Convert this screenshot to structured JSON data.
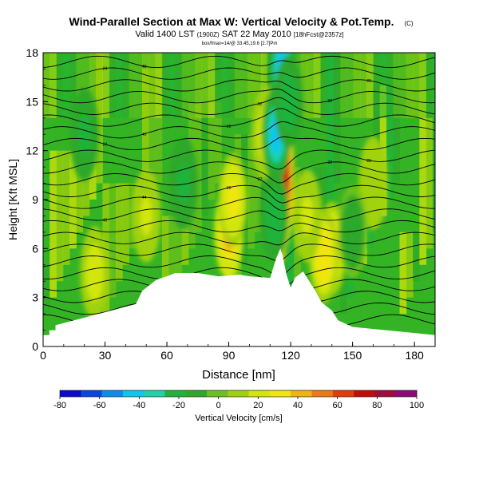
{
  "chart_data": {
    "type": "heatmap",
    "title": "Wind-Parallel Section at Max W: Vertical Velocity & Pot.Temp.",
    "title_mark": "(C)",
    "subtitle_main": "Valid 1400 LST",
    "subtitle_small1": "(1900Z)",
    "subtitle_mid": "SAT 22 May 2010",
    "subtitle_small2": "[18hFcst@2357z]",
    "subtitle2": "box/fmax=14/@ 33.45,19.6 [2.7]Pm",
    "xlabel": "Distance [nm]",
    "ylabel": "Height [Kft MSL]",
    "xlim": [
      0,
      190
    ],
    "ylim": [
      0,
      18
    ],
    "xticks": [
      0,
      30,
      60,
      90,
      120,
      150,
      180
    ],
    "yticks": [
      0,
      3,
      6,
      9,
      12,
      15,
      18
    ],
    "colorbar": {
      "label": "Vertical Velocity [cm/s]",
      "ticks": [
        -80,
        -60,
        -40,
        -20,
        0,
        20,
        40,
        60,
        80,
        100
      ],
      "range": [
        -80,
        100
      ],
      "colors": [
        "#0a0ad2",
        "#0a46e6",
        "#0a8cf0",
        "#0ac8f0",
        "#1ed2aa",
        "#1eb43c",
        "#2ea82a",
        "#6cc21a",
        "#a0d20a",
        "#d2e60a",
        "#f0e60a",
        "#f0b40a",
        "#f07814",
        "#e63c0a",
        "#c80a0a",
        "#a00a3c",
        "#8c0a78"
      ]
    },
    "terrain_profile": {
      "x": [
        0,
        3,
        3,
        6,
        6,
        45,
        48,
        52,
        55,
        60,
        64,
        70,
        75,
        85,
        95,
        100,
        110,
        113,
        115,
        116,
        118,
        120,
        122,
        126,
        128,
        132,
        135,
        140,
        143,
        150,
        190
      ],
      "height": [
        0.7,
        0.7,
        1.0,
        1.0,
        1.3,
        2.6,
        3.4,
        3.8,
        4.1,
        4.3,
        4.5,
        4.5,
        4.5,
        4.3,
        4.4,
        4.3,
        4.2,
        5.4,
        6.0,
        5.6,
        4.4,
        3.6,
        4.2,
        4.6,
        4.2,
        3.4,
        2.7,
        2.2,
        1.6,
        1.2,
        0.7
      ]
    },
    "updraft_cores": [
      {
        "x": 115,
        "z": 9.5,
        "w": 95
      },
      {
        "x": 117,
        "z": 10.5,
        "w": 75
      },
      {
        "x": 90,
        "z": 7.0,
        "w": 45
      },
      {
        "x": 92,
        "z": 9.0,
        "w": 30
      },
      {
        "x": 140,
        "z": 6.0,
        "w": 40
      },
      {
        "x": 136,
        "z": 5.5,
        "w": 35
      },
      {
        "x": 115,
        "z": 14.5,
        "w": 30
      },
      {
        "x": 108,
        "z": 13.0,
        "w": 25
      },
      {
        "x": 25,
        "z": 4.5,
        "w": 25
      },
      {
        "x": 50,
        "z": 8.0,
        "w": 20
      },
      {
        "x": 128,
        "z": 8.0,
        "w": 20
      },
      {
        "x": 160,
        "z": 10.0,
        "w": 15
      }
    ],
    "downdraft_cores": [
      {
        "x": 113,
        "z": 13.0,
        "w": -45
      },
      {
        "x": 116,
        "z": 17.0,
        "w": -40
      },
      {
        "x": 119,
        "z": 15.0,
        "w": -25
      },
      {
        "x": 112,
        "z": 8.0,
        "w": -25
      },
      {
        "x": 20,
        "z": 13.0,
        "w": -20
      },
      {
        "x": 68,
        "z": 10.0,
        "w": -20
      },
      {
        "x": 150,
        "z": 7.0,
        "w": -15
      }
    ],
    "isentrope_labels": [
      "40",
      "44",
      "36",
      "32",
      "20",
      "28",
      "24",
      "40",
      "36",
      "32",
      "30",
      "20",
      "24",
      "40",
      "44",
      "36",
      "32",
      "28",
      "24",
      "40",
      "36",
      "32",
      "28",
      "24"
    ]
  }
}
